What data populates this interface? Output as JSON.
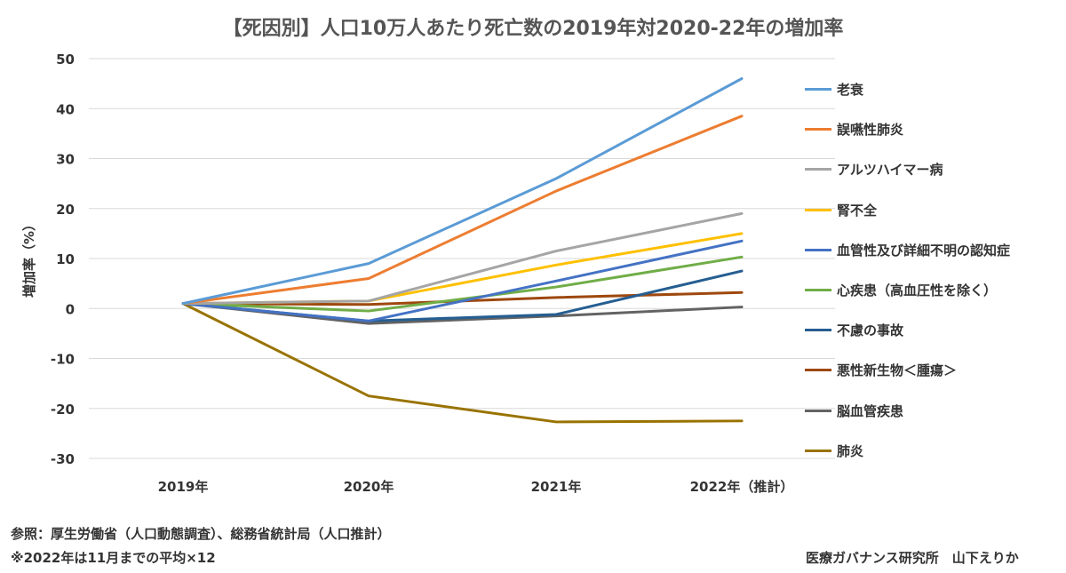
{
  "chart_data": {
    "type": "line",
    "title": "【死因別】人口10万人あたり死亡数の2019年対2020-22年の増加率",
    "ylabel": "増加率（%）",
    "xlabel": "",
    "ylim": [
      -30,
      50
    ],
    "yticks": [
      "50",
      "40",
      "30",
      "20",
      "10",
      "0",
      "-10",
      "-20",
      "-30"
    ],
    "categories": [
      "2019年",
      "2020年",
      "2021年",
      "2022年（推計）"
    ],
    "grid": true,
    "legend_position": "right",
    "series": [
      {
        "name": "老衰",
        "color": "#5b9bd5",
        "values": [
          1,
          9,
          26,
          46
        ]
      },
      {
        "name": "誤嚥性肺炎",
        "color": "#ed7d31",
        "values": [
          1,
          6,
          23.5,
          38.5
        ]
      },
      {
        "name": "アルツハイマー病",
        "color": "#a5a5a5",
        "values": [
          1,
          1.5,
          11.5,
          19
        ]
      },
      {
        "name": "腎不全",
        "color": "#ffc000",
        "values": [
          1,
          1.5,
          8.7,
          15
        ]
      },
      {
        "name": "血管性及び詳細不明の認知症",
        "color": "#4472c4",
        "values": [
          1,
          -2.5,
          5.5,
          13.5
        ]
      },
      {
        "name": "心疾患（高血圧性を除く）",
        "color": "#70ad47",
        "values": [
          1,
          -0.5,
          4.3,
          10.3
        ]
      },
      {
        "name": "不慮の事故",
        "color": "#255e91",
        "values": [
          1,
          -2.5,
          -1.2,
          7.5
        ]
      },
      {
        "name": "悪性新生物＜腫瘍＞",
        "color": "#9e480e",
        "values": [
          1,
          0.8,
          2.2,
          3.2
        ]
      },
      {
        "name": "脳血管疾患",
        "color": "#636363",
        "values": [
          1,
          -3,
          -1.5,
          0.3
        ]
      },
      {
        "name": "肺炎",
        "color": "#997300",
        "values": [
          1,
          -17.5,
          -22.7,
          -22.5
        ]
      }
    ]
  },
  "footer": {
    "source": "参照：厚生労働省（人口動態調査）、総務省統計局（人口推計）",
    "note": "※2022年は11月までの平均×12",
    "credit": "医療ガバナンス研究所　山下えりか"
  }
}
